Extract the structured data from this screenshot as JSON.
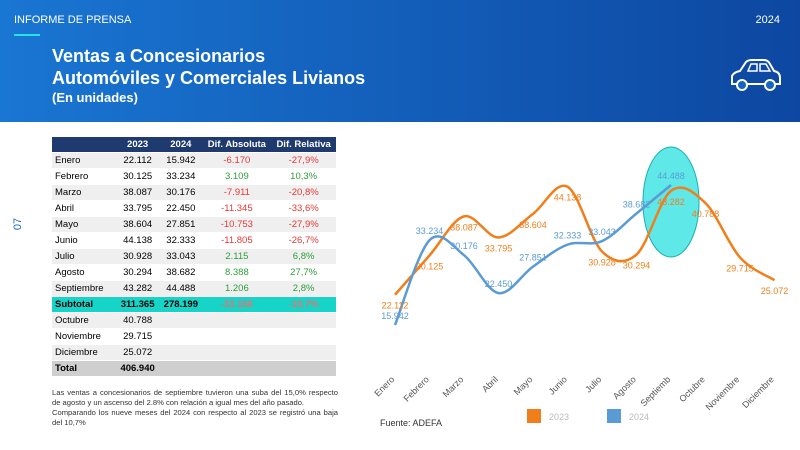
{
  "header": {
    "label": "INFORME DE PRENSA",
    "year": "2024",
    "page": "07",
    "title": [
      "Ventas a Concesionarios",
      "Automóviles y Comerciales Livianos"
    ],
    "subtitle": "(En unidades)"
  },
  "table": {
    "columns": [
      "2023",
      "2024",
      "Dif. Absoluta",
      "Dif. Relativa"
    ],
    "months_ytd": [
      [
        "Enero",
        "22.112",
        "15.942",
        "-6.170",
        "-27,9%"
      ],
      [
        "Febrero",
        "30.125",
        "33.234",
        "3.109",
        "10,3%"
      ],
      [
        "Marzo",
        "38.087",
        "30.176",
        "-7.911",
        "-20,8%"
      ],
      [
        "Abril",
        "33.795",
        "22.450",
        "-11.345",
        "-33,6%"
      ],
      [
        "Mayo",
        "38.604",
        "27.851",
        "-10.753",
        "-27,9%"
      ],
      [
        "Junio",
        "44.138",
        "32.333",
        "-11.805",
        "-26,7%"
      ],
      [
        "Julio",
        "30.928",
        "33.043",
        "2.115",
        "6,8%"
      ],
      [
        "Agosto",
        "30.294",
        "38.682",
        "8.388",
        "27,7%"
      ],
      [
        "Septiembre",
        "43.282",
        "44.488",
        "1.206",
        "2,8%"
      ]
    ],
    "subtotal": [
      "Subtotal",
      "311.365",
      "278.199",
      "-33.166",
      "-10,7%"
    ],
    "months_rest": [
      [
        "Octubre",
        "40.788"
      ],
      [
        "Noviembre",
        "29.715"
      ],
      [
        "Diciembre",
        "25.072"
      ]
    ],
    "total": [
      "Total",
      "406.940"
    ]
  },
  "notes": [
    "Las ventas a concesionarios de septiembre tuvieron una suba del 15,0% respecto de agosto y un ascenso del 2.8% con relación a igual mes del año pasado.",
    "Comparando los nueve meses del 2024 con respecto al 2023 se registró una baja del 10,7%"
  ],
  "chart_data": {
    "type": "line",
    "categories": [
      "Enero",
      "Febrero",
      "Marzo",
      "Abril",
      "Mayo",
      "Junio",
      "Julio",
      "Agosto",
      "Septiemb",
      "Octubre",
      "Noviembre",
      "Diciembre"
    ],
    "series": [
      {
        "name": "2023",
        "color": "#f07f1b",
        "values": [
          22112,
          30125,
          38087,
          33795,
          38604,
          44138,
          30928,
          30294,
          43282,
          40788,
          29715,
          25072
        ],
        "value_labels": [
          "22.112",
          "30.125",
          "38.087",
          "33.795",
          "38.604",
          "44.138",
          "30.928",
          "30.294",
          "43.282",
          "40.788",
          "29.715",
          "25.072"
        ]
      },
      {
        "name": "2024",
        "color": "#5b9bd5",
        "values": [
          15942,
          33234,
          30176,
          22450,
          27851,
          32333,
          33043,
          38682,
          44488,
          null,
          null,
          null
        ],
        "value_labels": [
          "15.942",
          "33.234",
          "30.176",
          "22.450",
          "27.851",
          "32.333",
          "33.043",
          "38.682",
          "44.488",
          null,
          null,
          null
        ]
      }
    ],
    "legend": "bottom",
    "source": "Fuente: ADEFA"
  }
}
